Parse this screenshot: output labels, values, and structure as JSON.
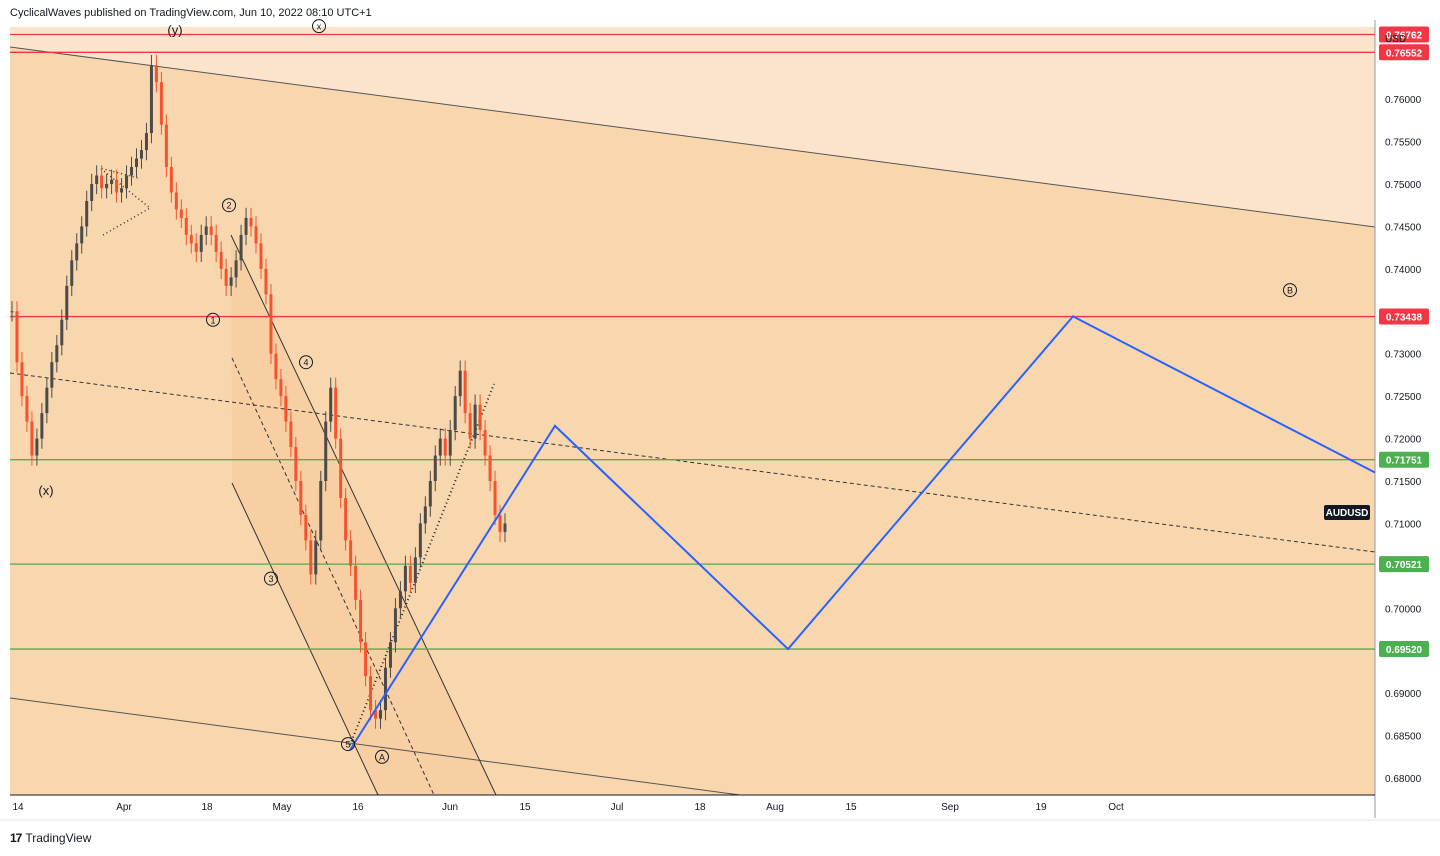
{
  "header": {
    "published": "CyclicalWaves published on TradingView.com, Jun 10, 2022 08:10 UTC+1"
  },
  "footer": {
    "logo_glyph": "17",
    "brand": "TradingView"
  },
  "chart_data": {
    "type": "candlestick",
    "symbol": "AUDUSD",
    "currency": "USD",
    "ylim": [
      0.678,
      0.7685
    ],
    "y_ticks": [
      "0.76000",
      "0.75500",
      "0.75000",
      "0.74500",
      "0.74000",
      "0.73000",
      "0.72500",
      "0.72000",
      "0.71500",
      "0.71000",
      "0.70000",
      "0.69000",
      "0.68500",
      "0.68000"
    ],
    "x_ticks": [
      "14",
      "Apr",
      "18",
      "May",
      "16",
      "Jun",
      "15",
      "Jul",
      "18",
      "Aug",
      "15",
      "Sep",
      "19",
      "Oct"
    ],
    "horizontal_levels": [
      {
        "label": "0.76762",
        "value": 0.76762,
        "color": "#f23645"
      },
      {
        "label": "0.76552",
        "value": 0.76552,
        "color": "#f23645"
      },
      {
        "label": "0.73438",
        "value": 0.73438,
        "color": "#f23645"
      },
      {
        "label": "0.71751",
        "value": 0.71751,
        "color": "#4caf50"
      },
      {
        "label": "0.70521",
        "value": 0.70521,
        "color": "#4caf50"
      },
      {
        "label": "0.69520",
        "value": 0.6952,
        "color": "#4caf50"
      }
    ],
    "price_badge": "AUDUSD",
    "price_path": [
      [
        0.735,
        0.729,
        0.725,
        0.722,
        0.718,
        0.72,
        0.723,
        0.726,
        0.729,
        0.731,
        0.734,
        0.738,
        0.741,
        0.743,
        0.745,
        0.748,
        0.75,
        0.751,
        0.7495,
        0.75,
        0.7505,
        0.749,
        0.7495,
        0.751,
        0.752,
        0.753,
        0.754,
        0.756,
        0.764,
        0.762,
        0.757,
        0.752,
        0.749,
        0.747,
        0.746,
        0.744,
        0.743,
        0.742,
        0.744,
        0.745,
        0.744,
        0.742,
        0.74,
        0.738,
        0.739,
        0.741,
        0.744,
        0.746,
        0.745,
        0.743
      ],
      [
        0.74,
        0.737,
        0.73,
        0.727,
        0.725,
        0.722,
        0.719,
        0.715,
        0.711,
        0.708,
        0.704,
        0.708,
        0.715,
        0.722,
        0.726,
        0.72,
        0.713,
        0.708,
        0.705,
        0.701,
        0.696,
        0.692,
        0.688,
        0.687,
        0.688,
        0.693,
        0.696,
        0.7,
        0.702,
        0.705,
        0.703,
        0.706,
        0.71,
        0.712,
        0.715,
        0.718,
        0.72,
        0.718,
        0.721,
        0.725,
        0.728,
        0.723,
        0.72,
        0.724,
        0.721,
        0.718,
        0.715,
        0.711,
        0.709,
        0.71
      ]
    ],
    "wave_labels": [
      {
        "text": "(y)",
        "x_i": 25,
        "y": 0.7681
      },
      {
        "text": "x",
        "x_i": 39,
        "y": 0.7686,
        "circled": true
      },
      {
        "text": "(x)",
        "x_i": 0,
        "y": 0.7138
      },
      {
        "text": "2",
        "x_i": 36,
        "y": 0.7475,
        "circled": true
      },
      {
        "text": "1",
        "x_i": 33,
        "y": 0.734,
        "circled": true
      },
      {
        "text": "4",
        "x_i": 46,
        "y": 0.729,
        "circled": true
      },
      {
        "text": "3",
        "x_i": 43,
        "y": 0.7035,
        "circled": true
      },
      {
        "text": "5",
        "x_i": 56,
        "y": 0.684,
        "circled": true
      },
      {
        "text": "A",
        "x_i": 59,
        "y": 0.6825,
        "circled": true
      },
      {
        "text": "B",
        "x_i": 190,
        "y": 0.7375,
        "circled": true
      }
    ],
    "projection": [
      {
        "date": "May 13",
        "y": 0.6833
      },
      {
        "date": "Jun 20",
        "y": 0.7215
      },
      {
        "date": "Aug 01",
        "y": 0.6952
      },
      {
        "date": "Sep 26",
        "y": 0.7344
      },
      {
        "date": "Nov 05",
        "y": 0.716
      }
    ]
  }
}
